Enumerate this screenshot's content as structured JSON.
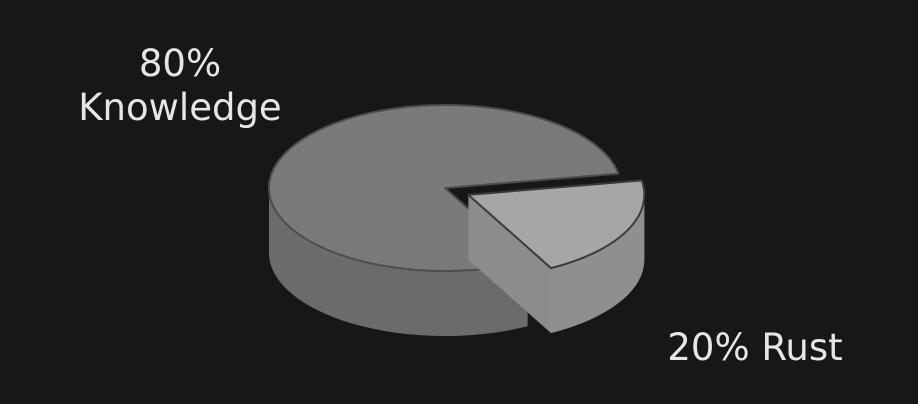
{
  "chart_data": {
    "type": "pie",
    "style": "3d-exploded",
    "title": "",
    "slices": [
      {
        "name": "Knowledge",
        "percent_label": "80%",
        "value": 80,
        "color": "#7a7a7a",
        "exploded": false
      },
      {
        "name": "Rust",
        "percent_label": "20%",
        "value": 20,
        "color": "#a6a6a6",
        "exploded": true
      }
    ],
    "labels": {
      "knowledge_pct": "80%",
      "knowledge_name": "Knowledge",
      "rust_full": "20% Rust"
    }
  },
  "colors": {
    "background": "#171717",
    "text": "#e6e6e6"
  }
}
